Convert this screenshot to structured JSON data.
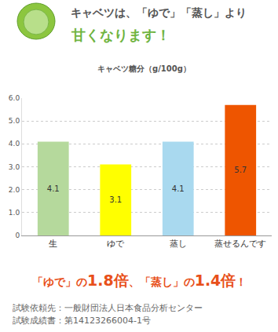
{
  "chart_data": {
    "type": "bar",
    "headline": [
      "キャベツは、「ゆで」「蒸し」より",
      "甘くなります！"
    ],
    "title": "キャベツ糖分（g/100g）",
    "categories": [
      "生",
      "ゆで",
      "蒸し",
      "蒸せるんです"
    ],
    "values": [
      4.1,
      3.1,
      4.1,
      5.7
    ],
    "colors": [
      "#b5d99c",
      "#ffff00",
      "#a9d9ef",
      "#ee5500"
    ],
    "ylim": [
      0,
      6
    ],
    "yticks": [
      0,
      {
        "value": 1,
        "label": "1.0"
      },
      {
        "value": 2,
        "label": "2.0"
      },
      {
        "value": 3,
        "label": "3.0"
      },
      {
        "value": 4,
        "label": "4.0"
      },
      {
        "value": 5,
        "label": "5.0"
      },
      {
        "value": 6,
        "label": "6.0"
      }
    ],
    "grid": true,
    "data_labels": true,
    "annotations": [
      "「ゆで」の1.8倍、「蒸し」の1.4倍！",
      "試験依頼先：一般財団法人日本食品分析センター",
      "試験成績書：第14123266004-1号"
    ]
  }
}
